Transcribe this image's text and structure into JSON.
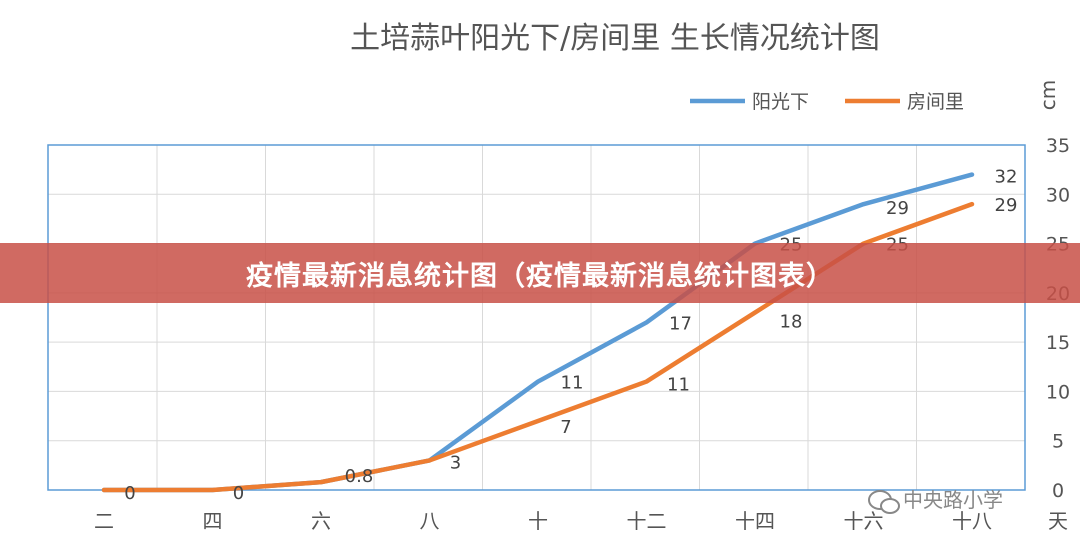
{
  "banner": {
    "text": "疫情最新消息统计图（疫情最新消息统计图表）"
  },
  "watermark": {
    "text": "中央路小学"
  },
  "colors": {
    "series1": "#5b9bd5",
    "series2": "#ed7d31",
    "plot_border": "#5b9bd5",
    "grid": "#d9d9d9",
    "banner": "#c8503f"
  },
  "chart_data": {
    "type": "line",
    "title": "土培蒜叶阳光下/房间里 生长情况统计图",
    "unit_label": "cm",
    "ylim": [
      0,
      35
    ],
    "yticks": [
      0,
      5,
      10,
      15,
      20,
      25,
      30,
      35
    ],
    "x_tick_labels": [
      "二",
      "四",
      "六",
      "八",
      "十",
      "十二",
      "十四",
      "十六",
      "十八",
      "天"
    ],
    "categories": [
      "二",
      "四",
      "六",
      "八",
      "十",
      "十二",
      "十四",
      "十六",
      "十八"
    ],
    "legend_position": "top-right",
    "grid": true,
    "series": [
      {
        "name": "阳光下",
        "values": [
          0,
          0,
          0.8,
          3,
          11,
          17,
          25,
          29,
          32
        ],
        "labels": [
          "0",
          "0",
          "0.8",
          "3",
          "11",
          "17",
          "25",
          "29",
          "32"
        ]
      },
      {
        "name": "房间里",
        "values": [
          0,
          0,
          0.8,
          3,
          7,
          11,
          18,
          25,
          29
        ],
        "labels": [
          "",
          "",
          "",
          "",
          "7",
          "11",
          "18",
          "25",
          "29"
        ]
      }
    ]
  }
}
